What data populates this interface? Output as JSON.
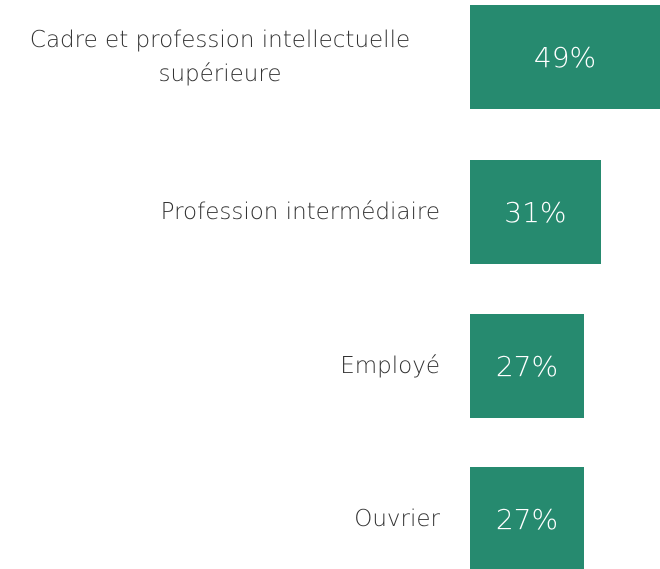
{
  "chart_data": {
    "type": "bar",
    "orientation": "horizontal",
    "categories": [
      "Cadre et profession intellectuelle supérieure",
      "Profession intermédiaire",
      "Employé",
      "Ouvrier"
    ],
    "values": [
      49,
      31,
      27,
      27
    ],
    "value_labels": [
      "49%",
      "31%",
      "27%",
      "27%"
    ],
    "color": "#268a6f"
  }
}
